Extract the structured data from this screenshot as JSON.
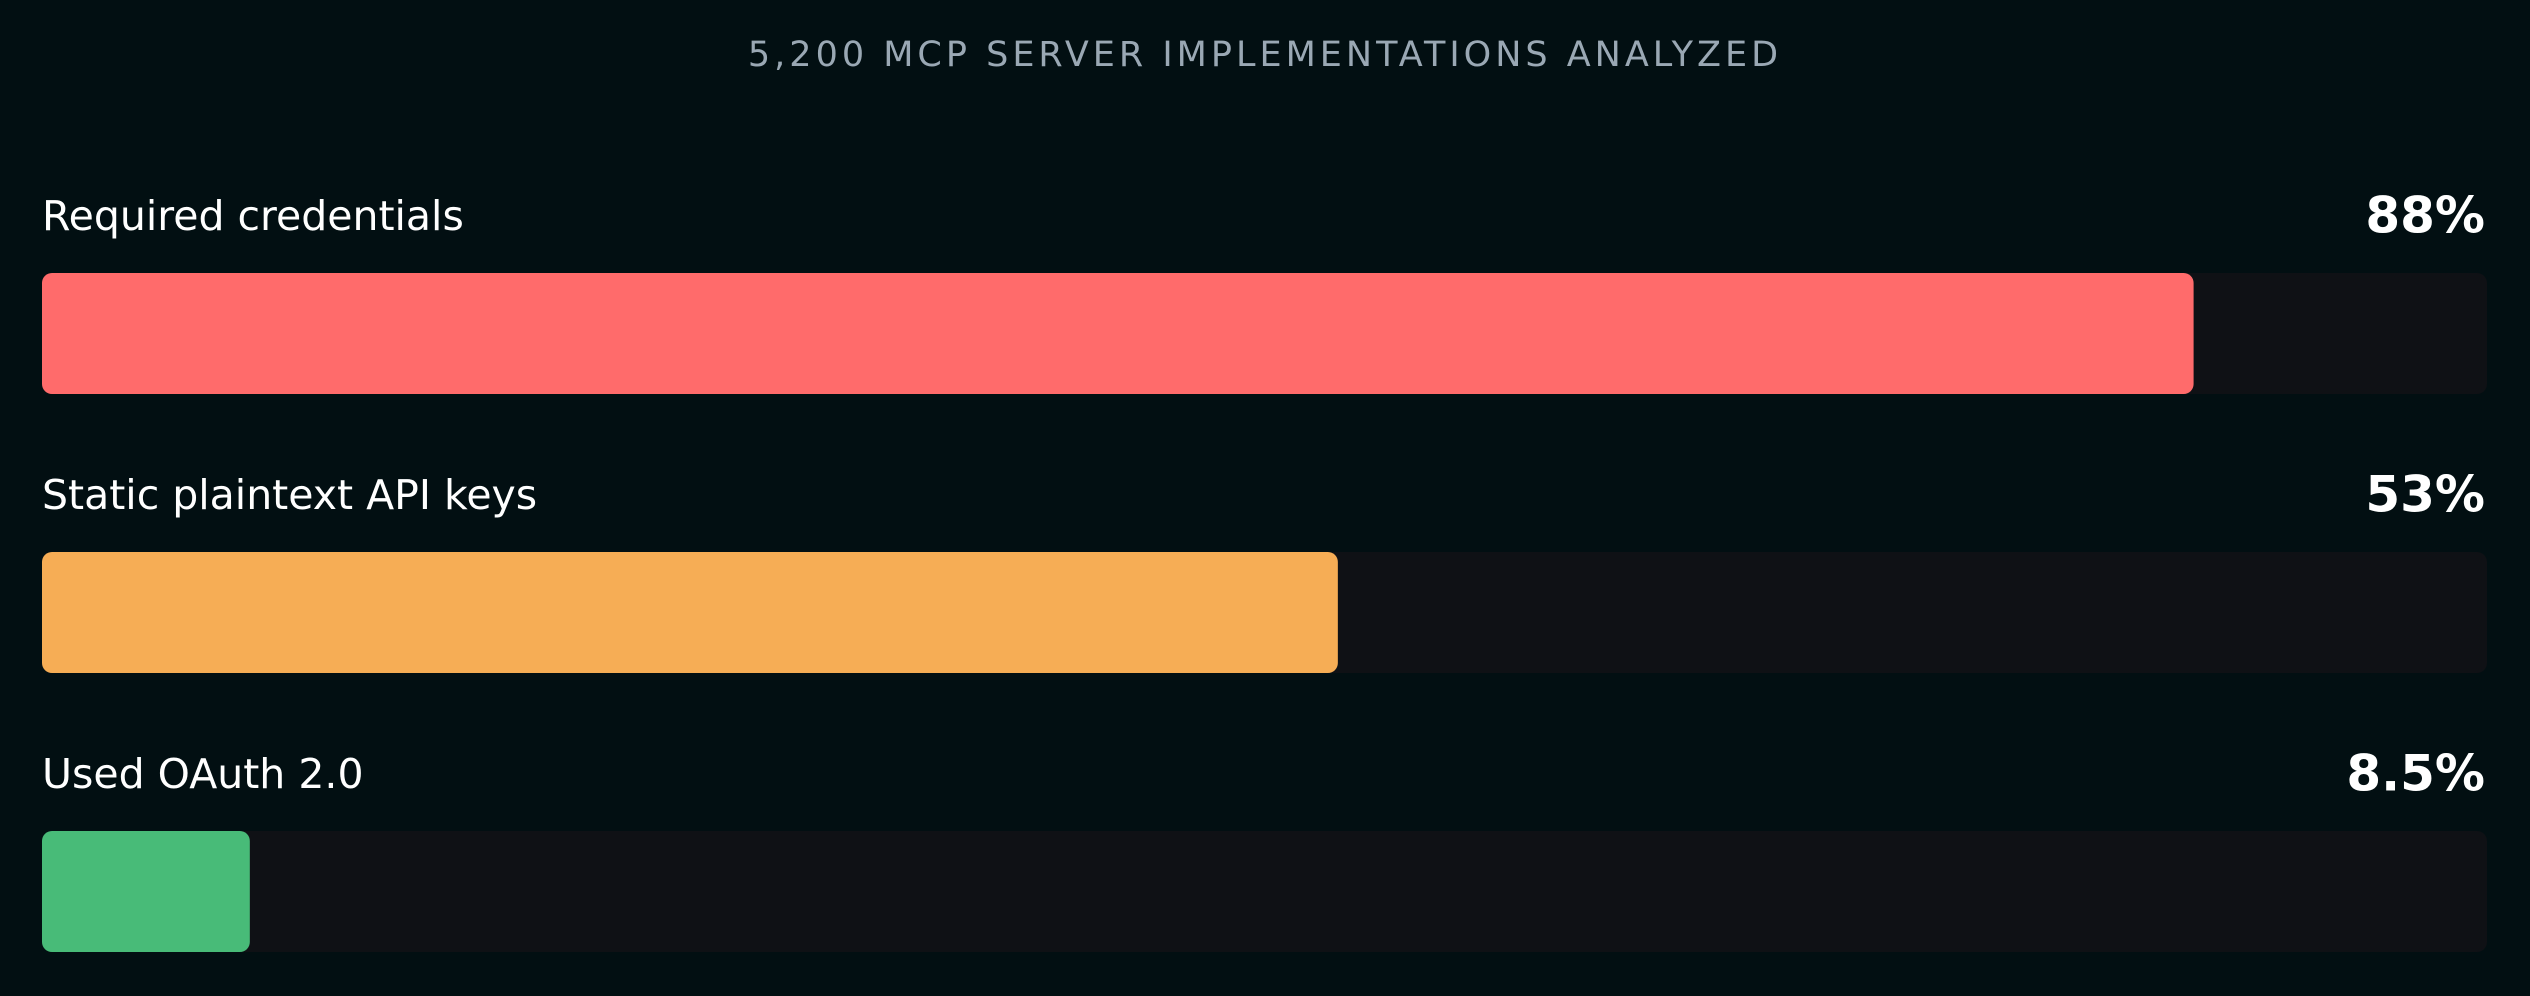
{
  "chart_data": {
    "type": "bar",
    "orientation": "horizontal",
    "title": "5,200 MCP SERVER IMPLEMENTATIONS ANALYZED",
    "categories": [
      "Required credentials",
      "Static plaintext API keys",
      "Used OAuth 2.0"
    ],
    "values": [
      88,
      53,
      8.5
    ],
    "value_labels": [
      "88%",
      "53%",
      "8.5%"
    ],
    "colors": [
      "#ff6b6b",
      "#f6ad55",
      "#48bb78"
    ],
    "xlim": [
      0,
      100
    ]
  }
}
